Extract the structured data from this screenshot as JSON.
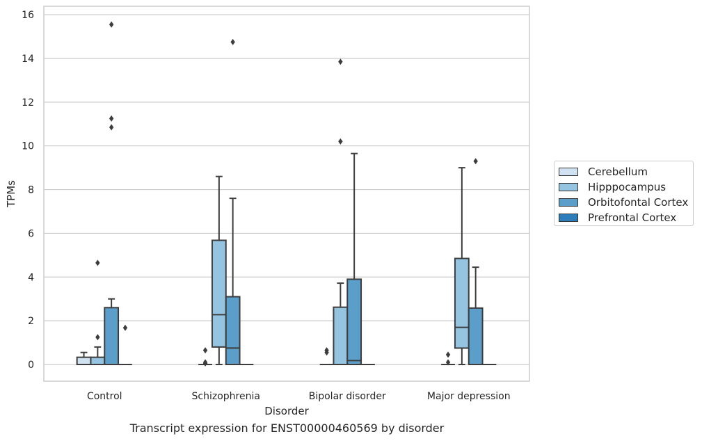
{
  "chart_data": {
    "type": "box",
    "title": "Transcript expression for ENST00000460569 by disorder",
    "xlabel": "Disorder",
    "ylabel": "TPMs",
    "ylim": [
      -0.75,
      16.35
    ],
    "yticks": [
      0,
      2,
      4,
      6,
      8,
      10,
      12,
      14,
      16
    ],
    "grid": true,
    "legend_position": "right",
    "categories": [
      "Control",
      "Schizophrenia",
      "Bipolar disorder",
      "Major depression"
    ],
    "series": [
      {
        "name": "Cerebellum",
        "color": "#d0e1f2",
        "boxes": [
          {
            "q1": 0,
            "median": 0,
            "q3": 0.33,
            "whisker_low": 0,
            "whisker_high": 0.55,
            "outliers": []
          },
          {
            "q1": 0,
            "median": 0,
            "q3": 0,
            "whisker_low": 0,
            "whisker_high": 0,
            "outliers": [
              0.65,
              0.1,
              0.05
            ]
          },
          {
            "q1": 0,
            "median": 0,
            "q3": 0,
            "whisker_low": 0,
            "whisker_high": 0,
            "outliers": [
              0.65,
              0.55
            ]
          },
          {
            "q1": 0,
            "median": 0,
            "q3": 0,
            "whisker_low": 0,
            "whisker_high": 0,
            "outliers": [
              0.45,
              0.1
            ]
          }
        ]
      },
      {
        "name": "Hipppocampus",
        "color": "#94c4df",
        "boxes": [
          {
            "q1": 0,
            "median": 0,
            "q3": 0.33,
            "whisker_low": 0,
            "whisker_high": 0.8,
            "outliers": [
              4.65,
              1.25
            ]
          },
          {
            "q1": 0.8,
            "median": 2.28,
            "q3": 5.68,
            "whisker_low": 0,
            "whisker_high": 8.6,
            "outliers": []
          },
          {
            "q1": 0,
            "median": 0,
            "q3": 2.62,
            "whisker_low": 0,
            "whisker_high": 3.72,
            "outliers": [
              13.85,
              10.2
            ]
          },
          {
            "q1": 0.75,
            "median": 1.7,
            "q3": 4.85,
            "whisker_low": 0,
            "whisker_high": 9.0,
            "outliers": []
          }
        ]
      },
      {
        "name": "Orbitofontal Cortex",
        "color": "#5b9ec9",
        "boxes": [
          {
            "q1": 0,
            "median": 0,
            "q3": 2.6,
            "whisker_low": 0,
            "whisker_high": 3.0,
            "outliers": [
              15.55,
              11.25,
              10.85
            ]
          },
          {
            "q1": 0,
            "median": 0.75,
            "q3": 3.1,
            "whisker_low": 0,
            "whisker_high": 7.6,
            "outliers": [
              14.75
            ]
          },
          {
            "q1": 0,
            "median": 0.18,
            "q3": 3.9,
            "whisker_low": 0,
            "whisker_high": 9.65,
            "outliers": []
          },
          {
            "q1": 0,
            "median": 0,
            "q3": 2.58,
            "whisker_low": 0,
            "whisker_high": 4.45,
            "outliers": [
              9.3
            ]
          }
        ]
      },
      {
        "name": "Prefrontal Cortex",
        "color": "#2d7dbb",
        "boxes": [
          {
            "q1": 0,
            "median": 0,
            "q3": 0,
            "whisker_low": 0,
            "whisker_high": 0,
            "outliers": [
              1.68
            ]
          },
          {
            "q1": 0,
            "median": 0,
            "q3": 0,
            "whisker_low": 0,
            "whisker_high": 0,
            "outliers": []
          },
          {
            "q1": 0,
            "median": 0,
            "q3": 0,
            "whisker_low": 0,
            "whisker_high": 0,
            "outliers": []
          },
          {
            "q1": 0,
            "median": 0,
            "q3": 0,
            "whisker_low": 0,
            "whisker_high": 0,
            "outliers": []
          }
        ]
      }
    ]
  }
}
